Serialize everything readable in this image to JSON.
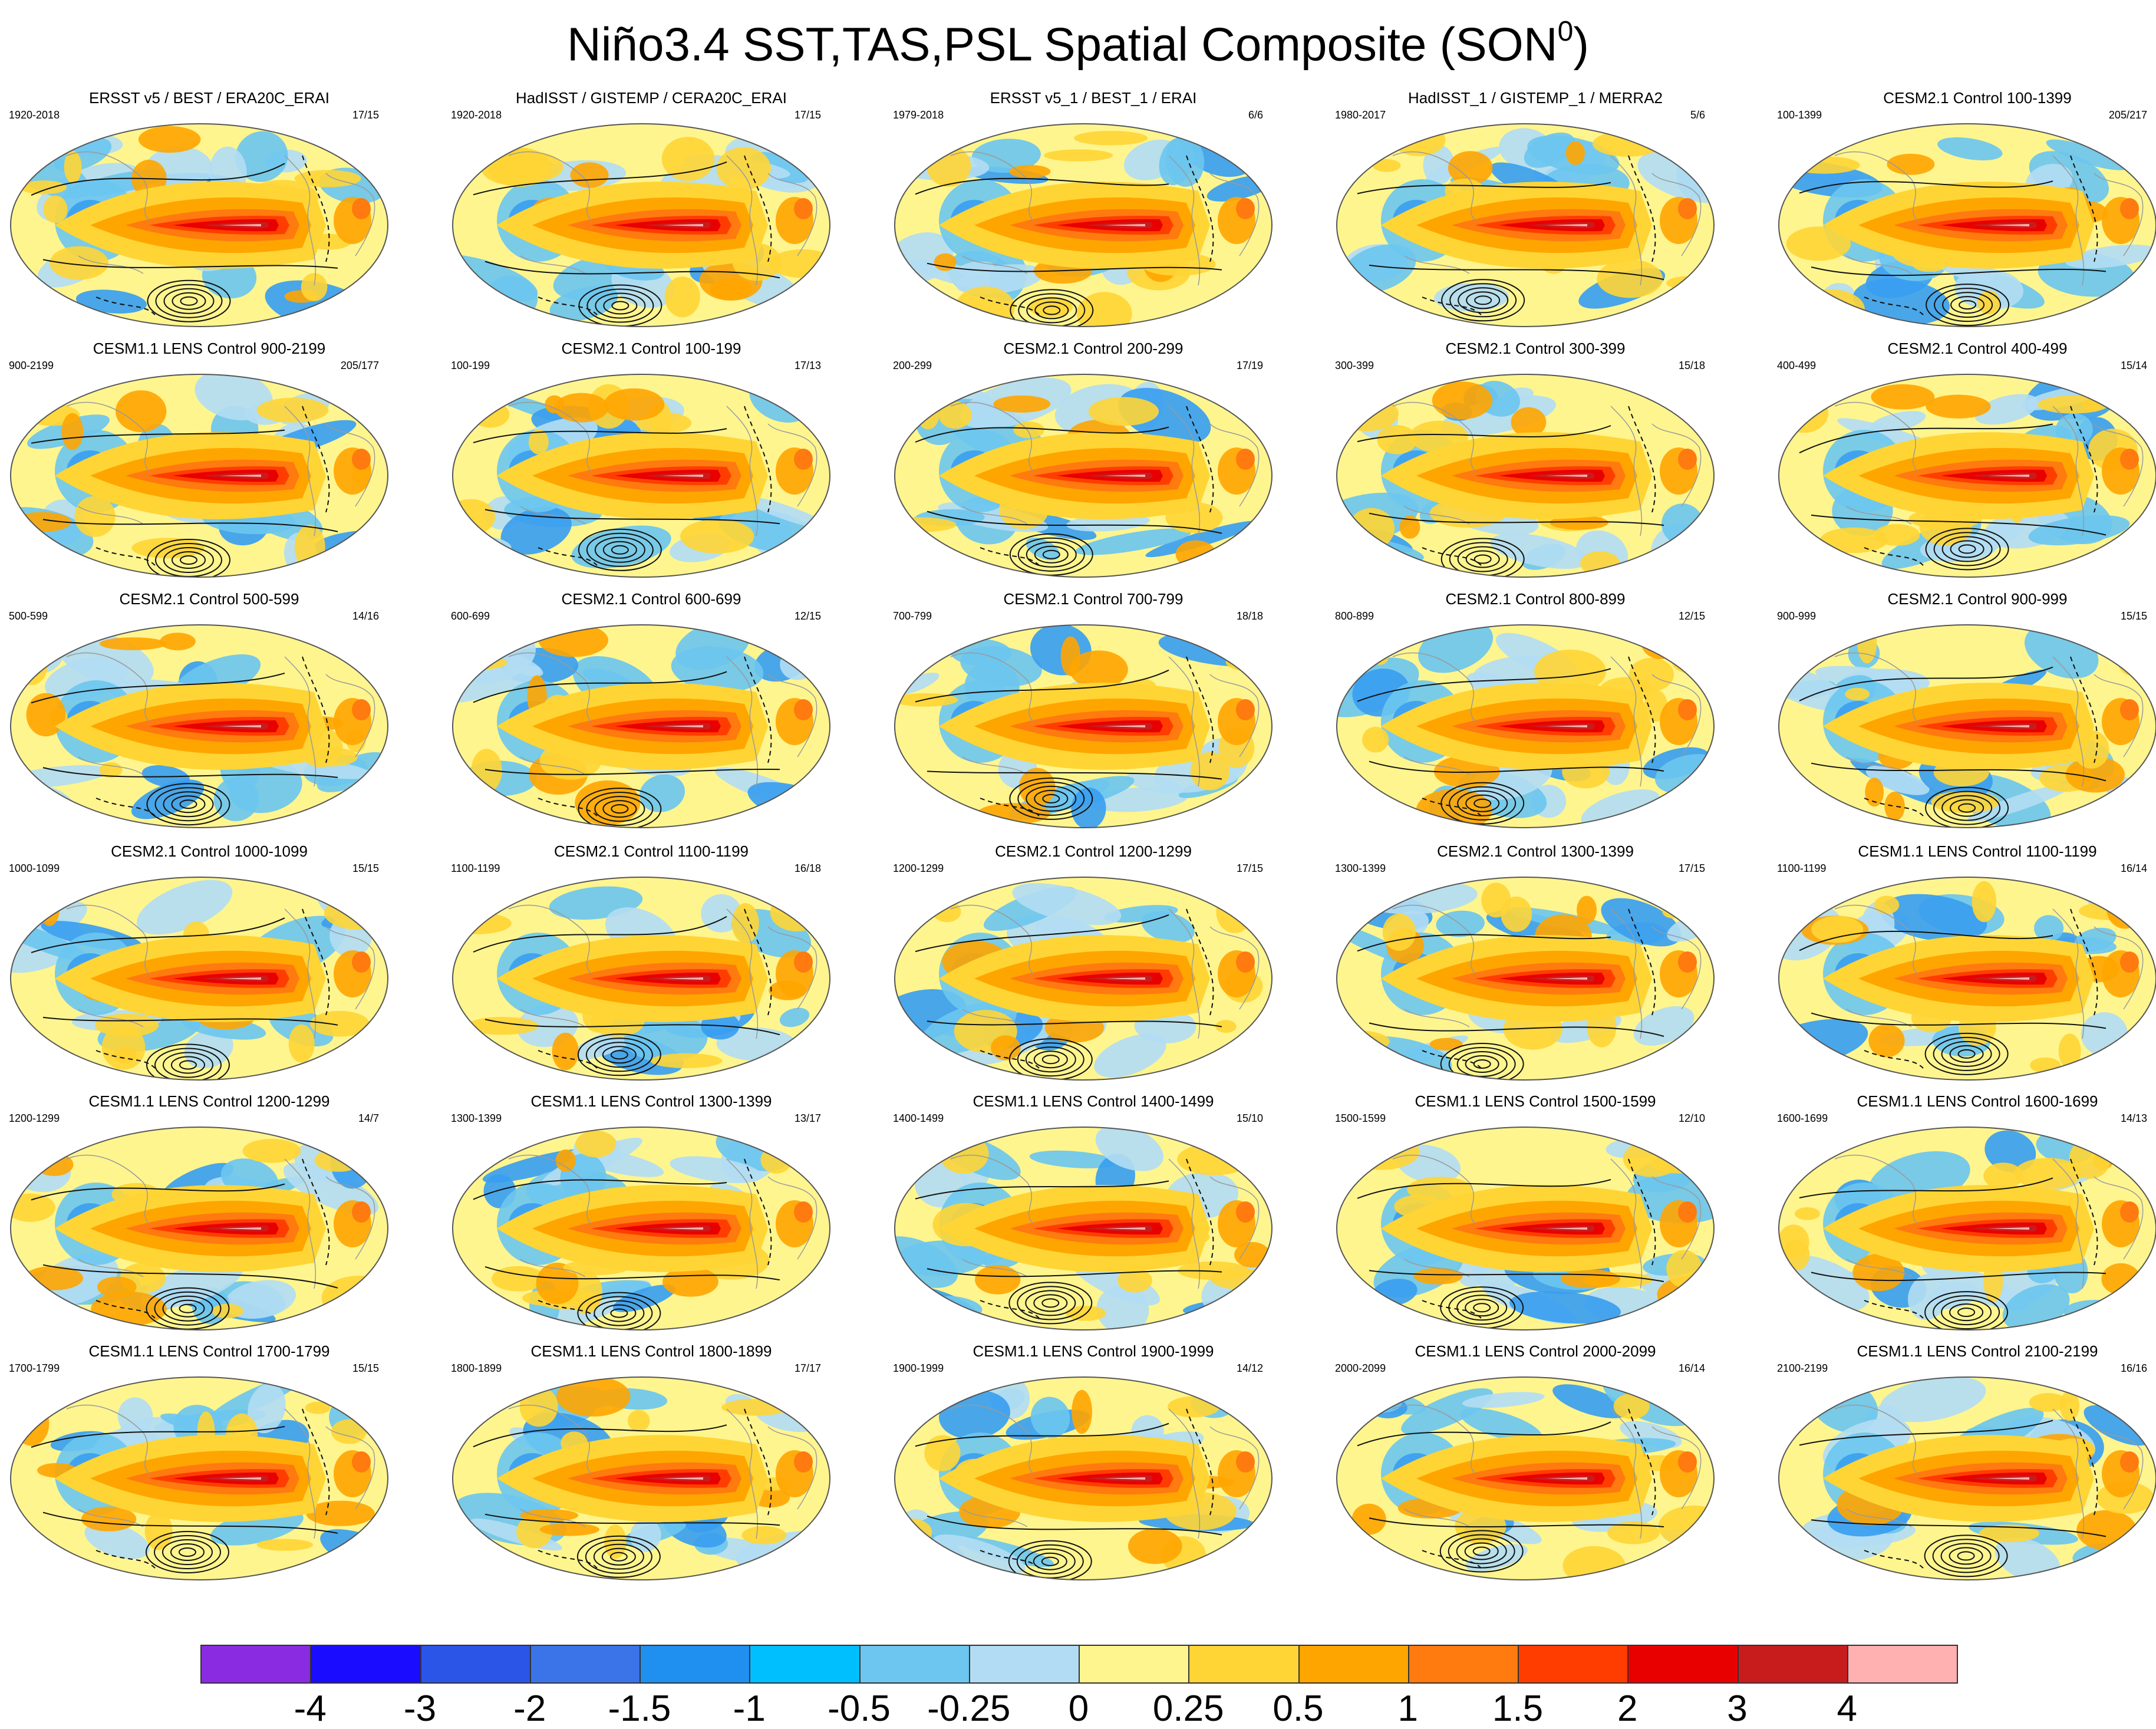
{
  "title": {
    "main": "Niño3.4 SST,TAS,PSL Spatial Composite (SON",
    "sup": "0",
    "close": ")"
  },
  "panels": [
    {
      "title": "ERSST v5 / BEST / ERA20C_ERAI",
      "years": "1920-2018",
      "count": "17/15"
    },
    {
      "title": "HadISST / GISTEMP / CERA20C_ERAI",
      "years": "1920-2018",
      "count": "17/15"
    },
    {
      "title": "ERSST v5_1 / BEST_1 / ERAI",
      "years": "1979-2018",
      "count": "6/6"
    },
    {
      "title": "HadISST_1 / GISTEMP_1 / MERRA2",
      "years": "1980-2017",
      "count": "5/6"
    },
    {
      "title": "CESM2.1 Control 100-1399",
      "years": "100-1399",
      "count": "205/217"
    },
    {
      "title": "CESM1.1 LENS Control 900-2199",
      "years": "900-2199",
      "count": "205/177"
    },
    {
      "title": "CESM2.1 Control 100-199",
      "years": "100-199",
      "count": "17/13"
    },
    {
      "title": "CESM2.1 Control 200-299",
      "years": "200-299",
      "count": "17/19"
    },
    {
      "title": "CESM2.1 Control 300-399",
      "years": "300-399",
      "count": "15/18"
    },
    {
      "title": "CESM2.1 Control 400-499",
      "years": "400-499",
      "count": "15/14"
    },
    {
      "title": "CESM2.1 Control 500-599",
      "years": "500-599",
      "count": "14/16"
    },
    {
      "title": "CESM2.1 Control 600-699",
      "years": "600-699",
      "count": "12/15"
    },
    {
      "title": "CESM2.1 Control 700-799",
      "years": "700-799",
      "count": "18/18"
    },
    {
      "title": "CESM2.1 Control 800-899",
      "years": "800-899",
      "count": "12/15"
    },
    {
      "title": "CESM2.1 Control 900-999",
      "years": "900-999",
      "count": "15/15"
    },
    {
      "title": "CESM2.1 Control 1000-1099",
      "years": "1000-1099",
      "count": "15/15"
    },
    {
      "title": "CESM2.1 Control 1100-1199",
      "years": "1100-1199",
      "count": "16/18"
    },
    {
      "title": "CESM2.1 Control 1200-1299",
      "years": "1200-1299",
      "count": "17/15"
    },
    {
      "title": "CESM2.1 Control 1300-1399",
      "years": "1300-1399",
      "count": "17/15"
    },
    {
      "title": "CESM1.1 LENS Control 1100-1199",
      "years": "1100-1199",
      "count": "16/14"
    },
    {
      "title": "CESM1.1 LENS Control 1200-1299",
      "years": "1200-1299",
      "count": "14/7"
    },
    {
      "title": "CESM1.1 LENS Control 1300-1399",
      "years": "1300-1399",
      "count": "13/17"
    },
    {
      "title": "CESM1.1 LENS Control 1400-1499",
      "years": "1400-1499",
      "count": "15/10"
    },
    {
      "title": "CESM1.1 LENS Control 1500-1599",
      "years": "1500-1599",
      "count": "12/10"
    },
    {
      "title": "CESM1.1 LENS Control 1600-1699",
      "years": "1600-1699",
      "count": "14/13"
    },
    {
      "title": "CESM1.1 LENS Control 1700-1799",
      "years": "1700-1799",
      "count": "15/15"
    },
    {
      "title": "CESM1.1 LENS Control 1800-1899",
      "years": "1800-1899",
      "count": "17/17"
    },
    {
      "title": "CESM1.1 LENS Control 1900-1999",
      "years": "1900-1999",
      "count": "14/12"
    },
    {
      "title": "CESM1.1 LENS Control 2000-2099",
      "years": "2000-2099",
      "count": "16/14"
    },
    {
      "title": "CESM1.1 LENS Control 2100-2199",
      "years": "2100-2199",
      "count": "16/16"
    }
  ],
  "colorbar": {
    "colors": [
      "#8a2be2",
      "#1a0dff",
      "#2a55e6",
      "#3a74e8",
      "#1f8ff0",
      "#00bfff",
      "#6cc6ef",
      "#b2dcf3",
      "#fff58f",
      "#ffd535",
      "#ffa500",
      "#ff7a0f",
      "#ff3d00",
      "#e80000",
      "#c81c1c",
      "#ffb0b0"
    ],
    "labels": [
      "-4",
      "-3",
      "-2",
      "-1.5",
      "-1",
      "-0.5",
      "-0.25",
      "0",
      "0.25",
      "0.5",
      "1",
      "1.5",
      "2",
      "3",
      "4"
    ]
  },
  "map_colors": {
    "ocean_base": "#fff58f",
    "cool_light": "#b2dcf3",
    "cool_mid": "#6cc6ef",
    "cool": "#3a9ef0",
    "cool_deep": "#2a55e6",
    "warm_light": "#ffd535",
    "warm": "#ffa500",
    "warm_mid": "#ff7a0f",
    "warm_strong": "#ff3d00",
    "hot": "#e80000",
    "hottest": "#c81c1c",
    "peak": "#ffb0b0",
    "contour": "#111111",
    "coast": "#9a9a9a"
  }
}
